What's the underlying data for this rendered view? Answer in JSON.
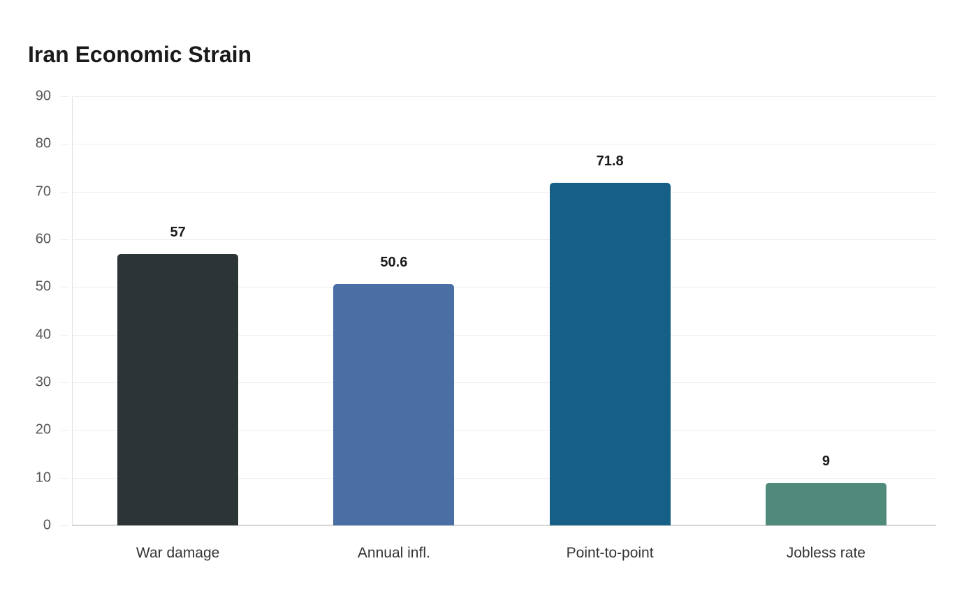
{
  "title": "Iran Economic Strain",
  "chart_data": {
    "type": "bar",
    "title": "Iran Economic Strain",
    "categories": [
      "War damage",
      "Annual infl.",
      "Point-to-point",
      "Jobless rate"
    ],
    "values": [
      57,
      50.6,
      71.8,
      9
    ],
    "value_labels": [
      "57",
      "50.6",
      "71.8",
      "9"
    ],
    "colors": [
      "#2d3436",
      "#4a6fa5",
      "#166088",
      "#4f8a7a"
    ],
    "xlabel": "",
    "ylabel": "",
    "ylim": [
      0,
      90
    ],
    "yticks": [
      0,
      10,
      20,
      30,
      40,
      50,
      60,
      70,
      80,
      90
    ],
    "grid": true,
    "legend": false
  }
}
